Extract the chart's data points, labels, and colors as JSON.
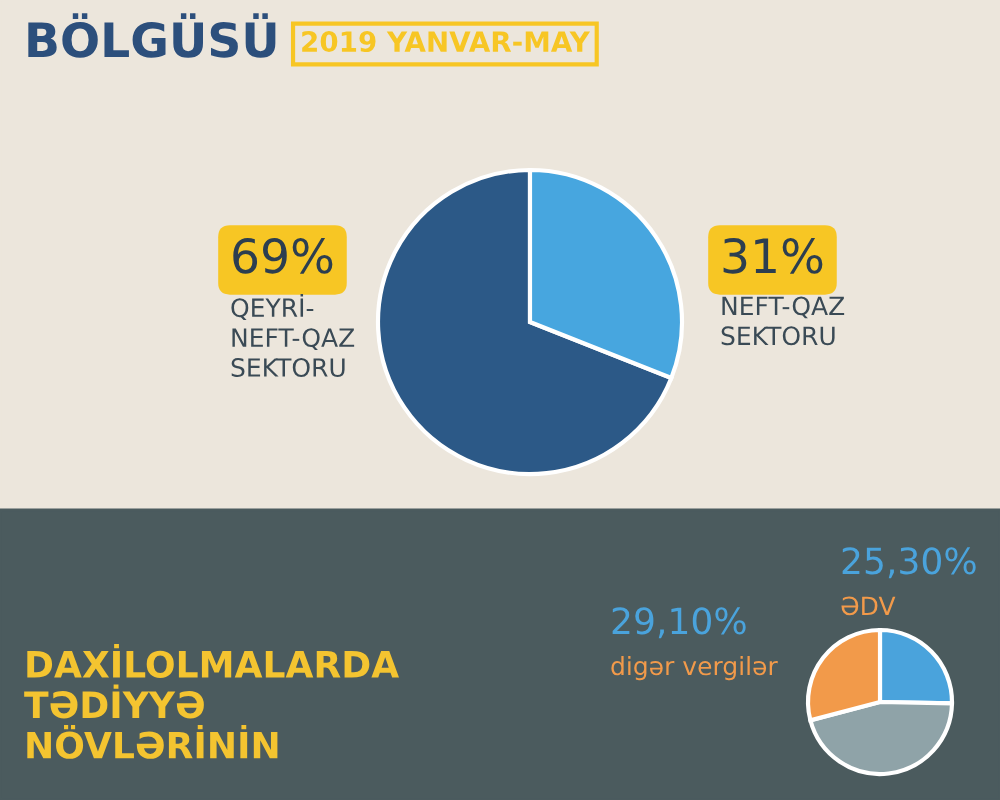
{
  "chart_data": [
    {
      "type": "pie",
      "title": "BÖLGÜSÜ",
      "subtitle": "2019 YANVAR-MAY",
      "categories": [
        "QEYRİ-\nNEFT-QAZ\nSEKTORU",
        "NEFT-QAZ\nSEKTORU"
      ],
      "values": [
        69,
        31
      ],
      "value_labels": [
        "69%",
        "31%"
      ],
      "colors": [
        "#2c5987",
        "#47a6df"
      ]
    },
    {
      "type": "pie",
      "title": "DAXİLOLMALARDA\nTƏDİYYƏ\nNÖVLƏRİNİN",
      "categories": [
        "ƏDV",
        null,
        "digər vergilər"
      ],
      "values": [
        25.3,
        45.6,
        29.1
      ],
      "value_labels": [
        "25,30%",
        null,
        "29,10%"
      ],
      "colors": [
        "#4aa3dc",
        "#8fa3a8",
        "#f29a4a"
      ]
    }
  ]
}
